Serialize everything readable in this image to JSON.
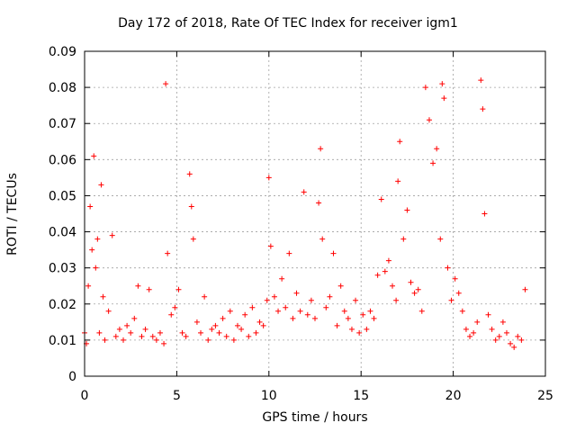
{
  "chart_data": {
    "type": "scatter",
    "title": "Day 172 of 2018, Rate Of TEC Index for receiver igm1",
    "xlabel": "GPS time / hours",
    "ylabel": "ROTI / TECUs",
    "xlim": [
      0,
      25
    ],
    "ylim": [
      0,
      0.09
    ],
    "x_ticks": [
      "0",
      "5",
      "10",
      "15",
      "20",
      "25"
    ],
    "y_ticks": [
      "0",
      "0.01",
      "0.02",
      "0.03",
      "0.04",
      "0.05",
      "0.06",
      "0.07",
      "0.08",
      "0.09"
    ],
    "grid": true,
    "marker": "+",
    "color": "#ff0000",
    "series": [
      {
        "name": "ROTI",
        "x": [
          0.0,
          0.1,
          0.2,
          0.3,
          0.4,
          0.5,
          0.6,
          0.7,
          0.8,
          0.9,
          1.0,
          1.1,
          1.3,
          1.5,
          1.7,
          1.9,
          2.1,
          2.3,
          2.5,
          2.7,
          2.9,
          3.1,
          3.3,
          3.5,
          3.7,
          3.9,
          4.1,
          4.3,
          4.4,
          4.5,
          4.7,
          4.9,
          5.1,
          5.3,
          5.5,
          5.7,
          5.8,
          5.9,
          6.1,
          6.3,
          6.5,
          6.7,
          6.9,
          7.1,
          7.3,
          7.5,
          7.7,
          7.9,
          8.1,
          8.3,
          8.5,
          8.7,
          8.9,
          9.1,
          9.3,
          9.5,
          9.7,
          9.9,
          10.0,
          10.1,
          10.3,
          10.5,
          10.7,
          10.9,
          11.1,
          11.3,
          11.5,
          11.7,
          11.9,
          12.1,
          12.3,
          12.5,
          12.7,
          12.8,
          12.9,
          13.1,
          13.3,
          13.5,
          13.7,
          13.9,
          14.1,
          14.3,
          14.5,
          14.7,
          14.9,
          15.1,
          15.3,
          15.5,
          15.7,
          15.9,
          16.1,
          16.3,
          16.5,
          16.7,
          16.9,
          17.0,
          17.1,
          17.3,
          17.5,
          17.7,
          17.9,
          18.1,
          18.3,
          18.5,
          18.7,
          18.9,
          19.1,
          19.3,
          19.4,
          19.5,
          19.7,
          19.9,
          20.1,
          20.3,
          20.5,
          20.7,
          20.9,
          21.1,
          21.3,
          21.5,
          21.6,
          21.7,
          21.9,
          22.1,
          22.3,
          22.5,
          22.7,
          22.9,
          23.1,
          23.3,
          23.5,
          23.7,
          23.9
        ],
        "y": [
          0.012,
          0.009,
          0.025,
          0.047,
          0.035,
          0.061,
          0.03,
          0.038,
          0.012,
          0.053,
          0.022,
          0.01,
          0.018,
          0.039,
          0.011,
          0.013,
          0.01,
          0.014,
          0.012,
          0.016,
          0.025,
          0.011,
          0.013,
          0.024,
          0.011,
          0.01,
          0.012,
          0.009,
          0.081,
          0.034,
          0.017,
          0.019,
          0.024,
          0.012,
          0.011,
          0.056,
          0.047,
          0.038,
          0.015,
          0.012,
          0.022,
          0.01,
          0.013,
          0.014,
          0.012,
          0.016,
          0.011,
          0.018,
          0.01,
          0.014,
          0.013,
          0.017,
          0.011,
          0.019,
          0.012,
          0.015,
          0.014,
          0.021,
          0.055,
          0.036,
          0.022,
          0.018,
          0.027,
          0.019,
          0.034,
          0.016,
          0.023,
          0.018,
          0.051,
          0.017,
          0.021,
          0.016,
          0.048,
          0.063,
          0.038,
          0.019,
          0.022,
          0.034,
          0.014,
          0.025,
          0.018,
          0.016,
          0.013,
          0.021,
          0.012,
          0.017,
          0.013,
          0.018,
          0.016,
          0.028,
          0.049,
          0.029,
          0.032,
          0.025,
          0.021,
          0.054,
          0.065,
          0.038,
          0.046,
          0.026,
          0.023,
          0.024,
          0.018,
          0.08,
          0.071,
          0.059,
          0.063,
          0.038,
          0.081,
          0.077,
          0.03,
          0.021,
          0.027,
          0.023,
          0.018,
          0.013,
          0.011,
          0.012,
          0.015,
          0.082,
          0.074,
          0.045,
          0.017,
          0.013,
          0.01,
          0.011,
          0.015,
          0.012,
          0.009,
          0.008,
          0.011,
          0.01,
          0.024
        ]
      }
    ]
  }
}
